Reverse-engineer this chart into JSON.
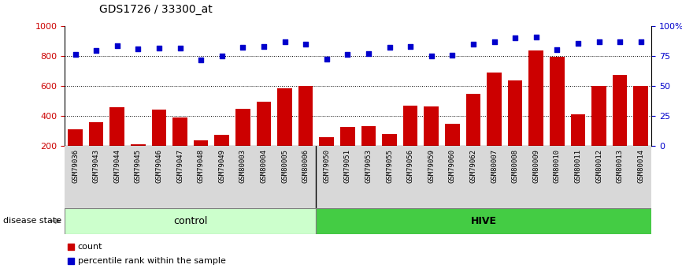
{
  "title": "GDS1726 / 33300_at",
  "categories": [
    "GSM79036",
    "GSM79043",
    "GSM79044",
    "GSM79045",
    "GSM79046",
    "GSM79047",
    "GSM79048",
    "GSM79049",
    "GSM80003",
    "GSM80004",
    "GSM80005",
    "GSM80006",
    "GSM79050",
    "GSM79051",
    "GSM79053",
    "GSM79055",
    "GSM79056",
    "GSM79059",
    "GSM79060",
    "GSM79062",
    "GSM80007",
    "GSM80008",
    "GSM80009",
    "GSM80010",
    "GSM80011",
    "GSM80012",
    "GSM80013",
    "GSM80014"
  ],
  "bar_values": [
    310,
    355,
    455,
    210,
    440,
    385,
    235,
    270,
    445,
    495,
    580,
    600,
    258,
    325,
    330,
    275,
    465,
    462,
    345,
    548,
    688,
    635,
    835,
    795,
    408,
    600,
    670,
    600
  ],
  "percentile_values": [
    810,
    835,
    865,
    845,
    850,
    850,
    770,
    800,
    855,
    860,
    895,
    880,
    780,
    810,
    815,
    855,
    860,
    800,
    805,
    875,
    895,
    920,
    925,
    840,
    885,
    895,
    895,
    895
  ],
  "control_count": 12,
  "hive_count": 16,
  "bar_color": "#cc0000",
  "percentile_color": "#0000cc",
  "ylim_left": [
    200,
    1000
  ],
  "ylim_right": [
    0,
    100
  ],
  "yticks_left": [
    200,
    400,
    600,
    800,
    1000
  ],
  "yticks_right": [
    0,
    25,
    50,
    75,
    100
  ],
  "ytick_labels_right": [
    "0",
    "25",
    "50",
    "75",
    "100%"
  ],
  "grid_values": [
    400,
    600,
    800
  ],
  "control_color": "#ccffcc",
  "hive_color": "#44cc44",
  "disease_label": "disease state",
  "control_label": "control",
  "hive_label": "HIVE",
  "legend_count_label": "count",
  "legend_percentile_label": "percentile rank within the sample"
}
